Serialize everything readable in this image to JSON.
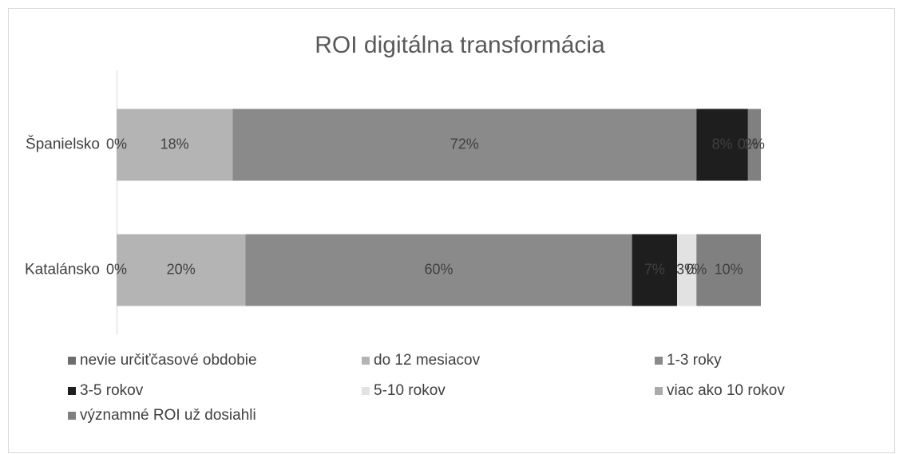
{
  "chart_data": {
    "type": "stacked_barh",
    "title": "ROI digitálna transformácia",
    "categories": [
      "Španielsko",
      "Katalánsko"
    ],
    "xlim": [
      0,
      100
    ],
    "series": [
      {
        "name": "nevie určiťčasové obdobie",
        "color": "#6e6e6e",
        "values": [
          0,
          0
        ],
        "value_labels": [
          "0%",
          "0%"
        ]
      },
      {
        "name": "do 12 mesiacov",
        "color": "#b4b4b4",
        "values": [
          18,
          20
        ],
        "value_labels": [
          "18%",
          "20%"
        ]
      },
      {
        "name": "1-3 roky",
        "color": "#8a8a8a",
        "values": [
          72,
          60
        ],
        "value_labels": [
          "72%",
          "60%"
        ]
      },
      {
        "name": "3-5 rokov",
        "color": "#1e1e1e",
        "values": [
          8,
          7
        ],
        "value_labels": [
          "8%",
          "7%"
        ]
      },
      {
        "name": "5-10 rokov",
        "color": "#e2e2e2",
        "values": [
          0,
          3
        ],
        "value_labels": [
          "0%",
          "3%"
        ]
      },
      {
        "name": "viac ako 10 rokov",
        "color": "#ababab",
        "values": [
          0,
          0
        ],
        "value_labels": [
          "0%",
          "0%"
        ]
      },
      {
        "name": "významné ROI už dosiahli",
        "color": "#808080",
        "values": [
          2,
          10
        ],
        "value_labels": [
          "2%",
          "10%"
        ]
      }
    ],
    "legend": "bottom"
  }
}
